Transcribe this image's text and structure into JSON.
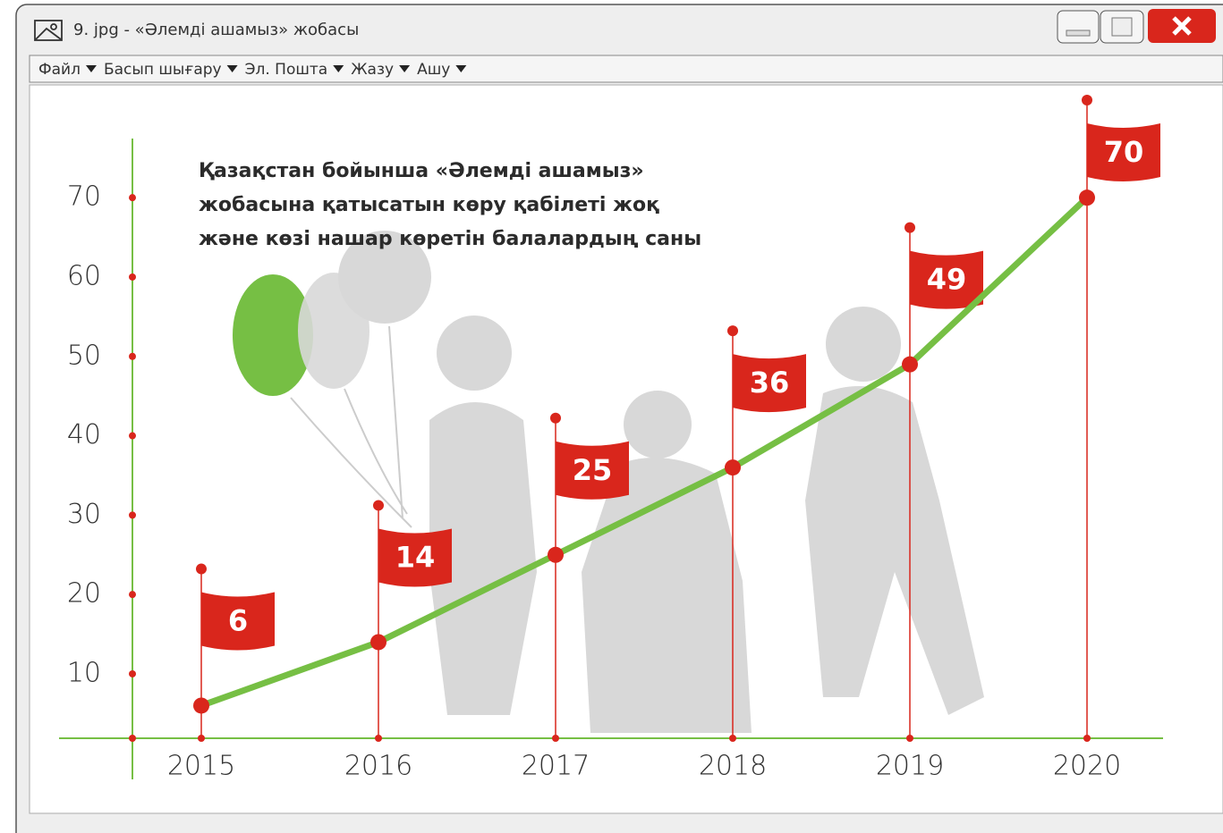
{
  "window": {
    "title": "9. jpg  -  «Әлемді ашамыз» жобасы",
    "menu": [
      "Файл",
      "Басып шығару",
      "Эл. Пошта",
      "Жазу",
      "Ашу"
    ]
  },
  "chart_data": {
    "type": "line",
    "title": [
      "Қазақстан бойынша «Әлемді ашамыз»",
      "жобасына қатысатын көру қабілеті жоқ",
      "және көзі нашар көретін балалардың саны"
    ],
    "categories": [
      "2015",
      "2016",
      "2017",
      "2018",
      "2019",
      "2020"
    ],
    "values": [
      6,
      14,
      25,
      36,
      49,
      70
    ],
    "color": "#76bf44",
    "flag_color": "#d9261c",
    "ylim": [
      2,
      77
    ],
    "yticks": [
      10,
      20,
      30,
      40,
      50,
      60,
      70
    ]
  }
}
